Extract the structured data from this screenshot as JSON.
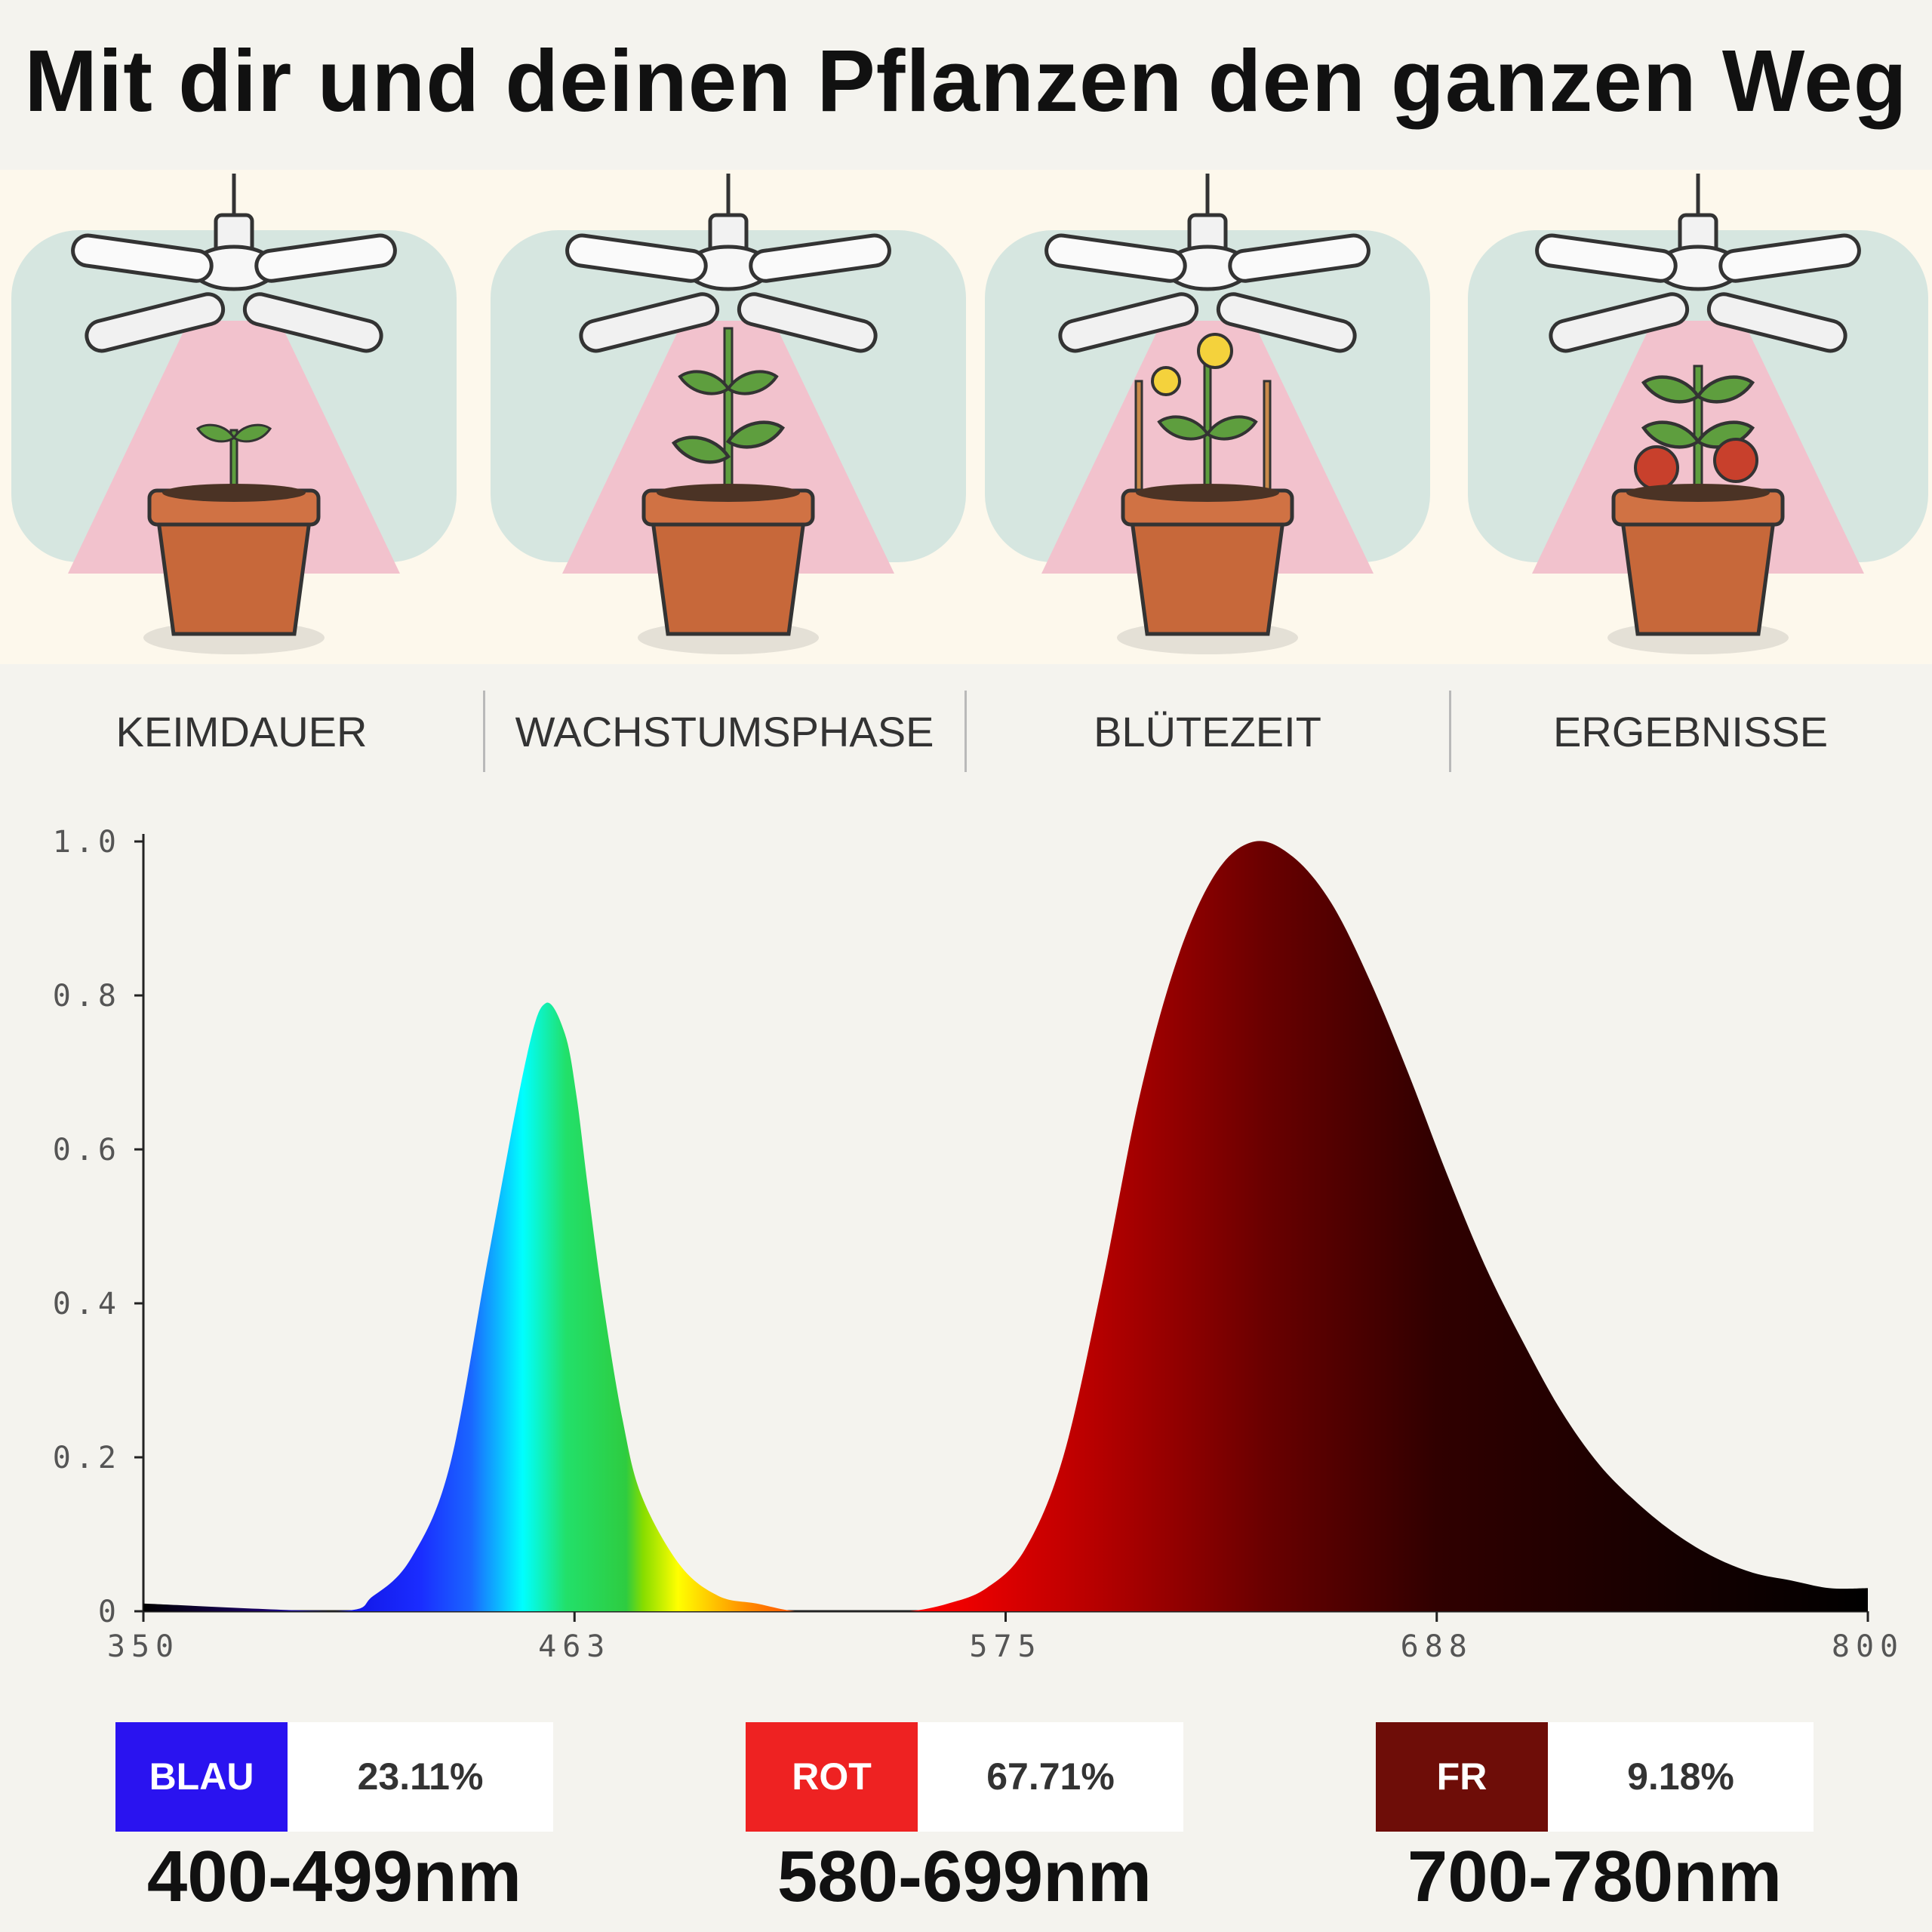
{
  "title": "Mit dir und deinen Pflanzen den ganzen Weg",
  "stages": [
    {
      "label": "KEIMDAUER",
      "icon": "seedling-icon"
    },
    {
      "label": "WACHSTUMSPHASE",
      "icon": "growing-plant-icon"
    },
    {
      "label": "BLÜTEZEIT",
      "icon": "flowering-plant-icon"
    },
    {
      "label": "ERGEBNISSE",
      "icon": "fruiting-plant-icon"
    }
  ],
  "chart_data": {
    "type": "area",
    "title": "",
    "xlabel": "",
    "ylabel": "",
    "xlim": [
      350,
      800
    ],
    "ylim": [
      0,
      1.0
    ],
    "x_ticks": [
      "350",
      "463",
      "575",
      "688",
      "800"
    ],
    "y_ticks": [
      "0",
      "0.2",
      "0.4",
      "0.6",
      "0.8",
      "1.0"
    ],
    "grid": false,
    "series": [
      {
        "x": [
          350,
          400,
          410,
          420,
          430,
          440,
          450,
          455,
          460,
          463,
          466,
          470,
          475,
          480,
          490,
          500,
          510,
          520,
          530,
          540,
          550,
          560,
          570,
          580,
          590,
          600,
          610,
          620,
          630,
          640,
          650,
          660,
          670,
          680,
          690,
          700,
          710,
          720,
          730,
          740,
          750,
          760,
          770,
          780,
          790,
          800
        ],
        "y": [
          0.01,
          0.0,
          0.02,
          0.07,
          0.19,
          0.46,
          0.72,
          0.79,
          0.75,
          0.67,
          0.55,
          0.4,
          0.25,
          0.15,
          0.06,
          0.02,
          0.01,
          0.0,
          0.0,
          0.0,
          0.0,
          0.01,
          0.03,
          0.08,
          0.2,
          0.42,
          0.67,
          0.85,
          0.96,
          1.0,
          0.98,
          0.92,
          0.82,
          0.7,
          0.57,
          0.45,
          0.35,
          0.26,
          0.19,
          0.14,
          0.1,
          0.07,
          0.05,
          0.04,
          0.03,
          0.03
        ]
      }
    ]
  },
  "legend": [
    {
      "name": "BLAU",
      "percent": "23.11%",
      "range": "400-499nm",
      "color": "#2a13f0"
    },
    {
      "name": "ROT",
      "percent": "67.71%",
      "range": "580-699nm",
      "color": "#ee2222"
    },
    {
      "name": "FR",
      "percent": "9.18%",
      "range": "700-780nm",
      "color": "#6e0d08"
    }
  ]
}
